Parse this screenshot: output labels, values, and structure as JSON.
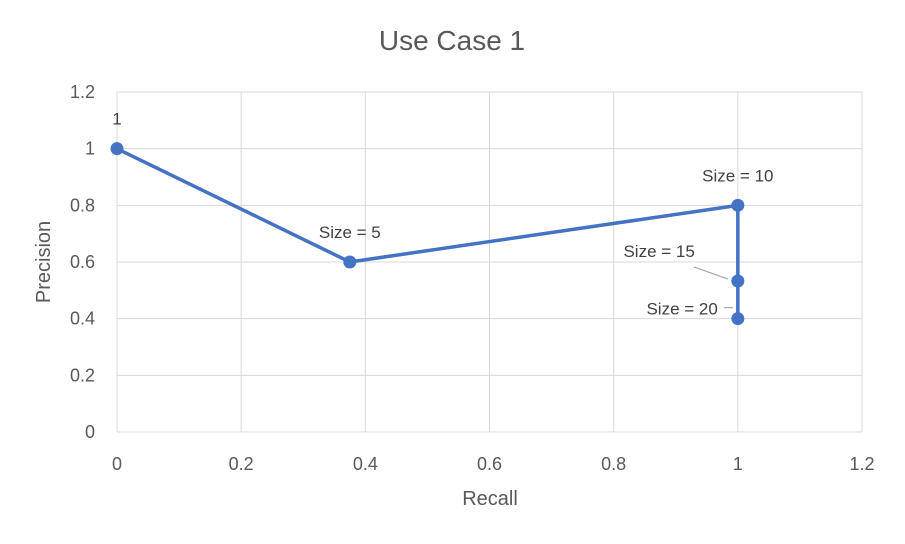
{
  "chart_data": {
    "type": "scatter",
    "title": "Use Case 1",
    "xlabel": "Recall",
    "ylabel": "Precision",
    "xlim": [
      0,
      1.2
    ],
    "ylim": [
      0,
      1.2
    ],
    "x_ticks": [
      "0",
      "0.2",
      "0.4",
      "0.6",
      "0.8",
      "1",
      "1.2"
    ],
    "y_ticks": [
      "0",
      "0.2",
      "0.4",
      "0.6",
      "0.8",
      "1",
      "1.2"
    ],
    "grid": true,
    "legend": "none",
    "series_color": "#4472c4",
    "series": [
      {
        "points": [
          {
            "x": 0,
            "y": 1,
            "label": "1"
          },
          {
            "x": 0.375,
            "y": 0.6,
            "label": "Size = 5"
          },
          {
            "x": 1,
            "y": 0.8,
            "label": "Size = 10"
          },
          {
            "x": 1,
            "y": 0.533,
            "label": "Size = 15"
          },
          {
            "x": 1,
            "y": 0.4,
            "label": "Size = 20"
          }
        ]
      }
    ]
  }
}
